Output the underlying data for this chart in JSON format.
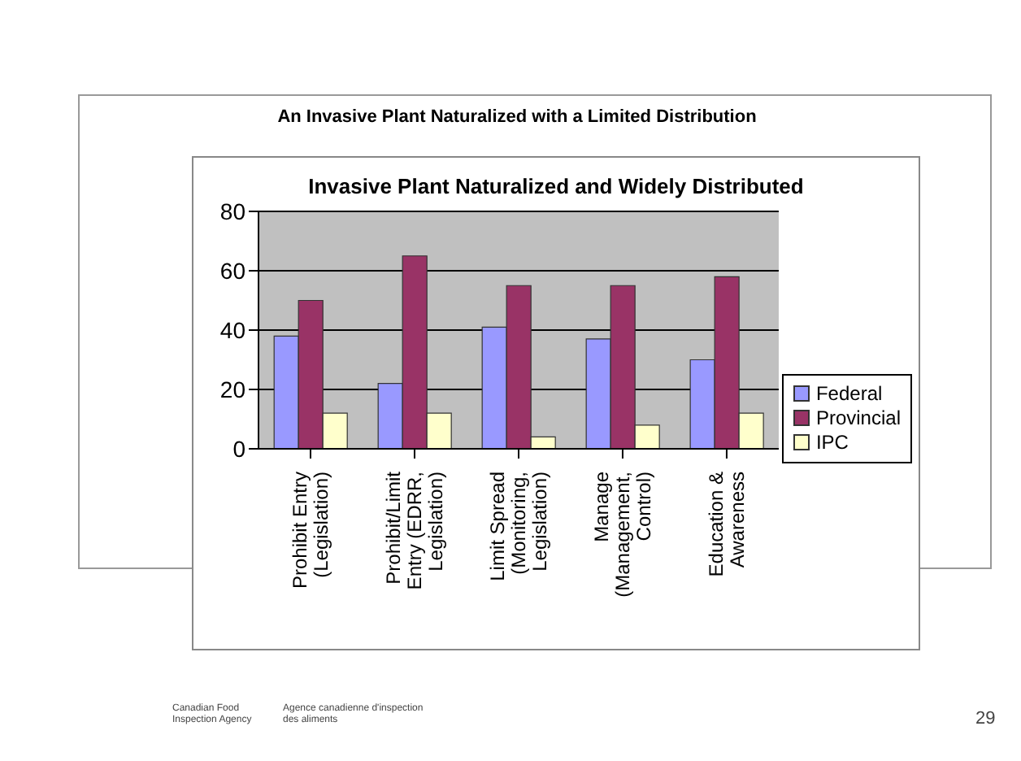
{
  "chart_data": {
    "type": "bar",
    "title": "Invasive Plant Naturalized and Widely Distributed",
    "categories": [
      "Prohibit Entry (Legislation)",
      "Prohibit/Limit Entry (EDRR, Legislation)",
      "Limit Spread (Monitoring, Legislation)",
      "Manage (Management, Control)",
      "Education & Awareness"
    ],
    "series": [
      {
        "name": "Federal",
        "color": "#9999ff",
        "values": [
          38,
          22,
          41,
          37,
          30
        ]
      },
      {
        "name": "Provincial",
        "color": "#993366",
        "values": [
          50,
          65,
          55,
          55,
          58
        ]
      },
      {
        "name": "IPC",
        "color": "#ffffcc",
        "values": [
          12,
          12,
          4,
          8,
          12
        ]
      }
    ],
    "ylim": [
      0,
      80
    ],
    "yticks": [
      0,
      20,
      40,
      60,
      80
    ],
    "grid": "y",
    "legend": "right",
    "annotations": [
      "An Invasive Plant Naturalized with a Limited Distribution",
      "Canadian Food Inspection Agency",
      "Agence canadienne d'inspection des aliments",
      "29"
    ]
  }
}
